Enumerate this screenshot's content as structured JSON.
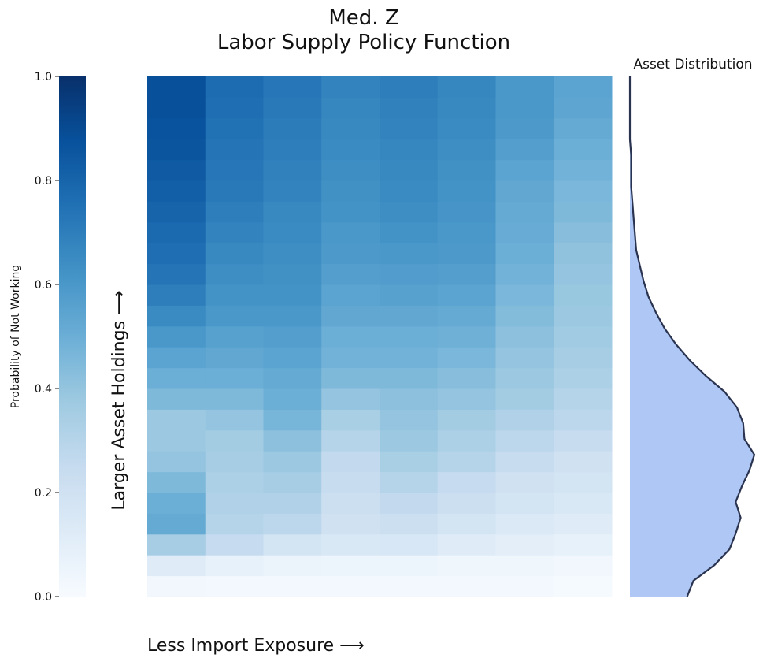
{
  "chart_data": {
    "type": "heatmap",
    "title": "Med. Z",
    "subtitle": "Labor Supply Policy Function",
    "x_label": "Less Import Exposure ⟶",
    "y_label": "Larger Asset Holdings ⟶",
    "colorbar_label": "Probability of Not Working",
    "colorscale": [
      "#f7fbff",
      "#deebf7",
      "#c6dbef",
      "#9ecae1",
      "#6baed6",
      "#4292c6",
      "#2171b5",
      "#08519c",
      "#08306b"
    ],
    "zlim": [
      0,
      1
    ],
    "zticks": [
      {
        "value": 0,
        "label": "0.0"
      },
      0.2,
      0.4,
      0.6,
      0.8,
      {
        "value": 1,
        "label": "1.0"
      }
    ],
    "values": [
      [
        0.03,
        0.12,
        0.35,
        0.52,
        0.5,
        0.45,
        0.4,
        0.38,
        0.38,
        0.45,
        0.5,
        0.55,
        0.6,
        0.65,
        0.7,
        0.74,
        0.76,
        0.78,
        0.8,
        0.82,
        0.84,
        0.86,
        0.87,
        0.88,
        0.88
      ],
      [
        0.02,
        0.08,
        0.25,
        0.3,
        0.32,
        0.33,
        0.35,
        0.36,
        0.4,
        0.45,
        0.5,
        0.53,
        0.56,
        0.6,
        0.62,
        0.64,
        0.66,
        0.68,
        0.7,
        0.72,
        0.73,
        0.74,
        0.75,
        0.76,
        0.77
      ],
      [
        0.02,
        0.06,
        0.18,
        0.28,
        0.32,
        0.35,
        0.38,
        0.42,
        0.47,
        0.5,
        0.52,
        0.55,
        0.57,
        0.6,
        0.62,
        0.63,
        0.64,
        0.65,
        0.66,
        0.68,
        0.69,
        0.7,
        0.71,
        0.72,
        0.73
      ],
      [
        0.02,
        0.05,
        0.15,
        0.2,
        0.22,
        0.24,
        0.26,
        0.3,
        0.34,
        0.4,
        0.45,
        0.48,
        0.5,
        0.53,
        0.55,
        0.57,
        0.59,
        0.6,
        0.62,
        0.63,
        0.64,
        0.65,
        0.66,
        0.67,
        0.68
      ],
      [
        0.02,
        0.05,
        0.16,
        0.22,
        0.26,
        0.3,
        0.34,
        0.38,
        0.4,
        0.42,
        0.45,
        0.48,
        0.5,
        0.53,
        0.56,
        0.58,
        0.6,
        0.62,
        0.64,
        0.65,
        0.66,
        0.67,
        0.68,
        0.69,
        0.7
      ],
      [
        0.02,
        0.04,
        0.12,
        0.18,
        0.22,
        0.25,
        0.3,
        0.33,
        0.36,
        0.4,
        0.43,
        0.46,
        0.49,
        0.52,
        0.55,
        0.57,
        0.59,
        0.6,
        0.61,
        0.62,
        0.63,
        0.64,
        0.65,
        0.66,
        0.67
      ],
      [
        0.02,
        0.04,
        0.1,
        0.14,
        0.18,
        0.2,
        0.24,
        0.28,
        0.32,
        0.36,
        0.38,
        0.4,
        0.42,
        0.44,
        0.46,
        0.48,
        0.5,
        0.51,
        0.52,
        0.53,
        0.55,
        0.57,
        0.59,
        0.6,
        0.6
      ],
      [
        0.01,
        0.03,
        0.08,
        0.12,
        0.15,
        0.18,
        0.2,
        0.24,
        0.28,
        0.3,
        0.33,
        0.35,
        0.37,
        0.38,
        0.39,
        0.4,
        0.41,
        0.43,
        0.45,
        0.46,
        0.48,
        0.5,
        0.52,
        0.54,
        0.55
      ]
    ],
    "distribution": {
      "title": "Asset Distribution",
      "color": "#aec7f5",
      "line_color": "#2a3450",
      "values": [
        0.46,
        0.51,
        0.68,
        0.8,
        0.85,
        0.89,
        0.85,
        0.9,
        0.96,
        1.0,
        0.92,
        0.91,
        0.86,
        0.76,
        0.61,
        0.48,
        0.37,
        0.28,
        0.21,
        0.15,
        0.11,
        0.08,
        0.05,
        0.04,
        0.03,
        0.02,
        0.01,
        0.01,
        0.01,
        0,
        0,
        0,
        0,
        0
      ]
    }
  }
}
